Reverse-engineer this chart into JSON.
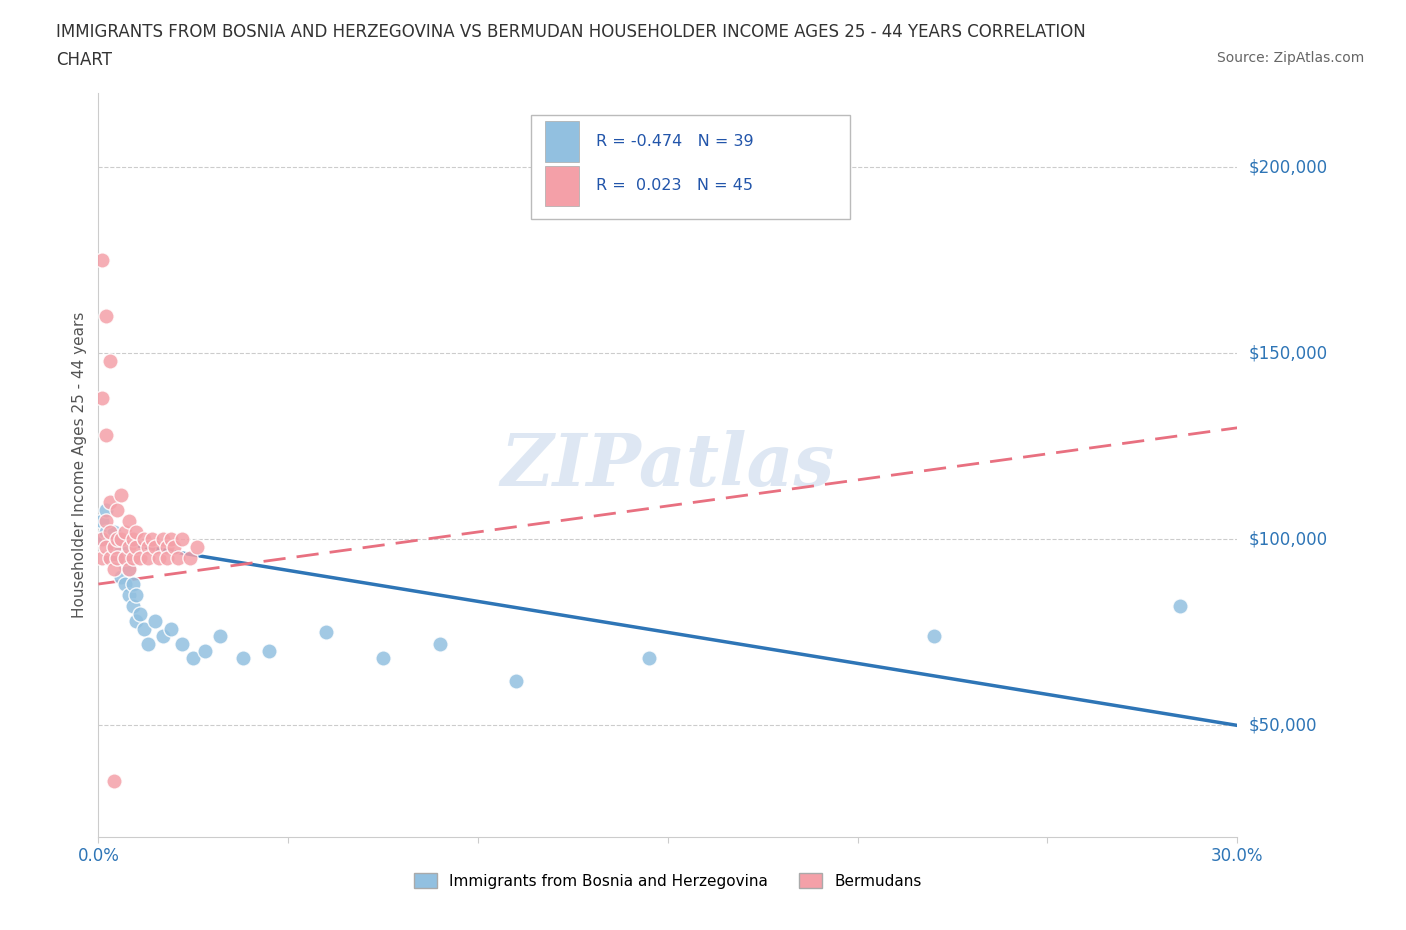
{
  "title_line1": "IMMIGRANTS FROM BOSNIA AND HERZEGOVINA VS BERMUDAN HOUSEHOLDER INCOME AGES 25 - 44 YEARS CORRELATION",
  "title_line2": "CHART",
  "source": "Source: ZipAtlas.com",
  "ylabel": "Householder Income Ages 25 - 44 years",
  "xlim": [
    0.0,
    0.3
  ],
  "ylim": [
    20000,
    220000
  ],
  "ytick_values": [
    50000,
    100000,
    150000,
    200000
  ],
  "ytick_labels": [
    "$50,000",
    "$100,000",
    "$150,000",
    "$200,000"
  ],
  "color_blue": "#92C0E0",
  "color_pink": "#F4A0A8",
  "color_blue_line": "#2E75B6",
  "color_pink_line": "#E87080",
  "color_blue_dark": "#2E75B6",
  "watermark_text": "ZIPatlas",
  "legend_label1": "Immigrants from Bosnia and Herzegovina",
  "legend_label2": "Bermudans",
  "bosnia_x": [
    0.001,
    0.001,
    0.002,
    0.002,
    0.003,
    0.003,
    0.004,
    0.004,
    0.005,
    0.005,
    0.006,
    0.006,
    0.007,
    0.007,
    0.008,
    0.008,
    0.009,
    0.009,
    0.01,
    0.01,
    0.011,
    0.012,
    0.013,
    0.015,
    0.017,
    0.019,
    0.022,
    0.025,
    0.028,
    0.032,
    0.038,
    0.045,
    0.06,
    0.075,
    0.09,
    0.11,
    0.145,
    0.22,
    0.285
  ],
  "bosnia_y": [
    105000,
    100000,
    108000,
    102000,
    100000,
    95000,
    102000,
    98000,
    95000,
    100000,
    90000,
    97000,
    93000,
    88000,
    92000,
    85000,
    88000,
    82000,
    85000,
    78000,
    80000,
    76000,
    72000,
    78000,
    74000,
    76000,
    72000,
    68000,
    70000,
    74000,
    68000,
    70000,
    75000,
    68000,
    72000,
    62000,
    68000,
    74000,
    82000
  ],
  "bermuda_x": [
    0.001,
    0.001,
    0.002,
    0.002,
    0.003,
    0.003,
    0.003,
    0.004,
    0.004,
    0.005,
    0.005,
    0.005,
    0.006,
    0.006,
    0.007,
    0.007,
    0.008,
    0.008,
    0.008,
    0.009,
    0.009,
    0.01,
    0.01,
    0.011,
    0.012,
    0.013,
    0.013,
    0.014,
    0.015,
    0.016,
    0.017,
    0.018,
    0.018,
    0.019,
    0.02,
    0.021,
    0.022,
    0.024,
    0.026,
    0.004,
    0.001,
    0.002,
    0.003,
    0.001,
    0.002
  ],
  "bermuda_y": [
    100000,
    95000,
    98000,
    105000,
    102000,
    110000,
    95000,
    98000,
    92000,
    100000,
    108000,
    95000,
    100000,
    112000,
    95000,
    102000,
    98000,
    92000,
    105000,
    100000,
    95000,
    98000,
    102000,
    95000,
    100000,
    98000,
    95000,
    100000,
    98000,
    95000,
    100000,
    98000,
    95000,
    100000,
    98000,
    95000,
    100000,
    95000,
    98000,
    35000,
    175000,
    160000,
    148000,
    138000,
    128000
  ]
}
